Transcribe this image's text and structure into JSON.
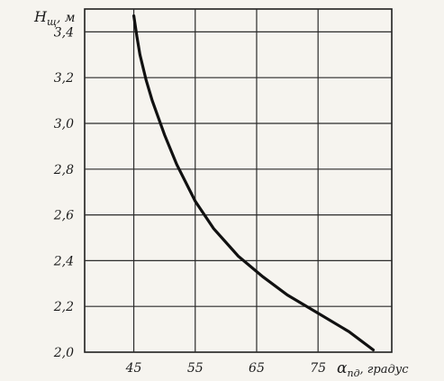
{
  "chart_data": {
    "type": "line",
    "ylabel_main": "H",
    "ylabel_sub": "щ",
    "ylabel_unit": ", м",
    "xlabel_main": "α",
    "xlabel_sub": "пд",
    "xlabel_unit": ", градус",
    "y_tick_labels": [
      "2,0",
      "2,2",
      "2,4",
      "2,6",
      "2,8",
      "3,0",
      "3,2",
      "3,4"
    ],
    "y_ticks": [
      2.0,
      2.2,
      2.4,
      2.6,
      2.8,
      3.0,
      3.2,
      3.4
    ],
    "x_tick_labels": [
      "45",
      "55",
      "65",
      "75"
    ],
    "x_ticks": [
      45,
      55,
      65,
      75
    ],
    "ylim": [
      2.0,
      3.5
    ],
    "xlim": [
      37,
      87
    ],
    "grid": true,
    "series": [
      {
        "x": [
          45,
          45.5,
          46,
          47,
          48,
          50,
          52,
          55,
          58,
          62,
          66,
          70,
          75,
          80,
          84
        ],
        "y": [
          3.47,
          3.38,
          3.3,
          3.19,
          3.1,
          2.95,
          2.82,
          2.66,
          2.54,
          2.42,
          2.33,
          2.25,
          2.17,
          2.09,
          2.01
        ]
      }
    ]
  }
}
